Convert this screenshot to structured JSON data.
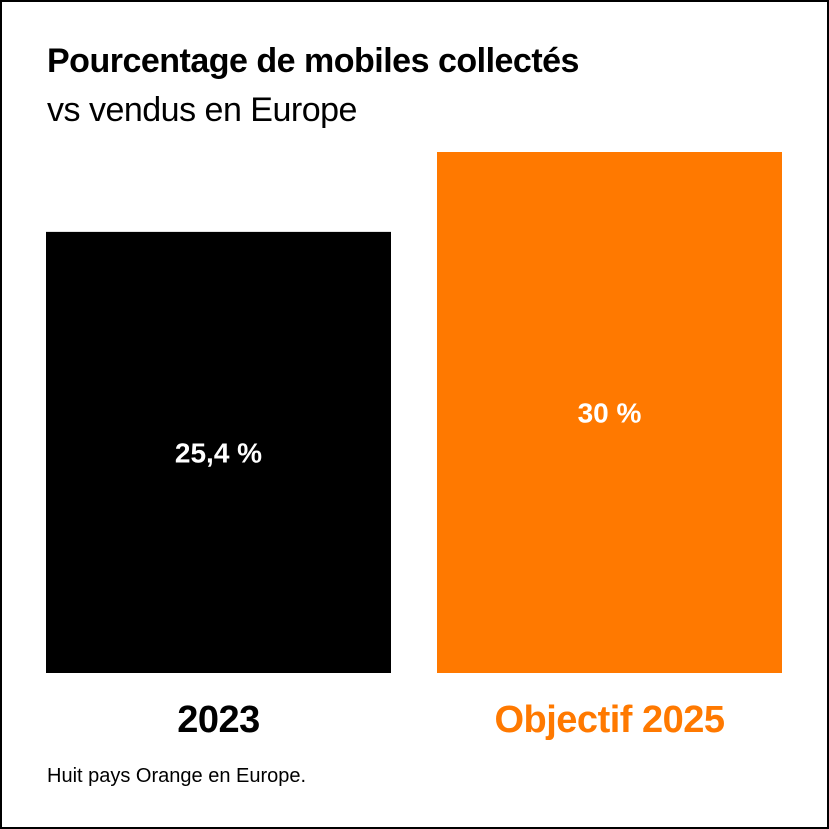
{
  "chart_data": {
    "type": "bar",
    "title": "Pourcentage de mobiles collectés",
    "subtitle": "vs vendus en Europe",
    "categories": [
      "2023",
      "Objectif 2025"
    ],
    "values": [
      25.4,
      30
    ],
    "data_labels": [
      "25,4 %",
      "30 %"
    ],
    "colors": [
      "#000000",
      "#FF7900"
    ],
    "category_label_colors": [
      "#000000",
      "#FF7900"
    ],
    "ylim": [
      0,
      30
    ],
    "grid": false,
    "note": "Huit pays Orange en Europe."
  }
}
